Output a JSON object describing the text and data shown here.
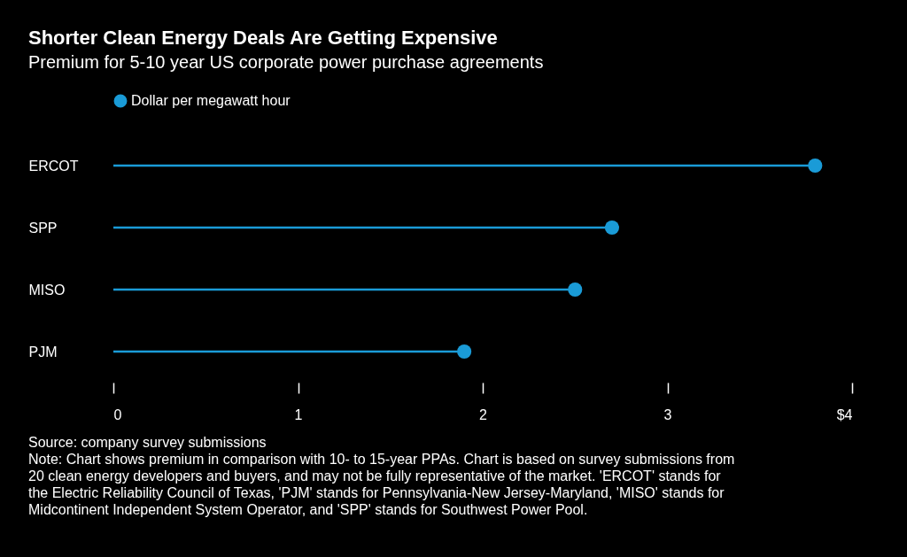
{
  "chart_data": {
    "type": "lollipop",
    "title": "Shorter Clean Energy Deals Are Getting Expensive",
    "subtitle": "Premium for 5-10 year US corporate power purchase agreements",
    "orientation": "horizontal",
    "categories": [
      "ERCOT",
      "SPP",
      "MISO",
      "PJM"
    ],
    "series": [
      {
        "name": "Dollar per megawatt hour",
        "color": "#1a9bd7",
        "values": [
          3.8,
          2.7,
          2.5,
          1.9
        ]
      }
    ],
    "xlim": [
      0,
      4
    ],
    "xticks": [
      0,
      1,
      2,
      3,
      {
        "value": 4,
        "label": "$4"
      }
    ],
    "legend": "top left",
    "marker": "circle",
    "annotations": [
      "Source: company survey submissions",
      "Note: Chart shows premium in comparison with 10- to 15-year PPAs. Chart is based on survey submissions from 20 clean energy developers and buyers, and may not be fully representative of the market. 'ERCOT' stands for the Electric Reliability Council of Texas, 'PJM' stands for Pennsylvania-New Jersey-Maryland, 'MISO' stands for Midcontinent Independent System Operator, and 'SPP' stands for Southwest Power Pool."
    ]
  }
}
